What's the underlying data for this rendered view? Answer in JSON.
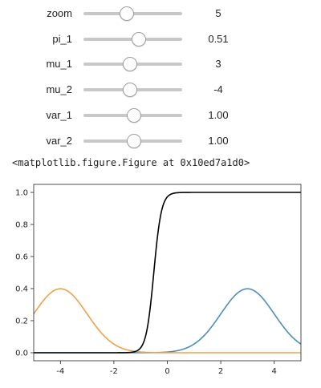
{
  "controls": [
    {
      "name": "zoom",
      "display": "5",
      "level": 0.43
    },
    {
      "name": "pi_1",
      "display": "0.51",
      "level": 0.55
    },
    {
      "name": "mu_1",
      "display": "3",
      "level": 0.46
    },
    {
      "name": "mu_2",
      "display": "-4",
      "level": 0.46
    },
    {
      "name": "var_1",
      "display": "1.00",
      "level": 0.5
    },
    {
      "name": "var_2",
      "display": "1.00",
      "level": 0.5
    }
  ],
  "output": {
    "figure_repr": "<matplotlib.figure.Figure at 0x10ed7a1d0>"
  },
  "chart_data": {
    "type": "line",
    "xlim": [
      -5,
      5
    ],
    "ylim": [
      -0.05,
      1.05
    ],
    "x_ticks": [
      -4,
      -2,
      0,
      2,
      4
    ],
    "x_tick_labels": [
      "-4",
      "-2",
      "0",
      "2",
      "4"
    ],
    "y_ticks": [
      0.0,
      0.2,
      0.4,
      0.6,
      0.8,
      1.0
    ],
    "y_tick_labels": [
      "0.0",
      "0.2",
      "0.4",
      "0.6",
      "0.8",
      "1.0"
    ],
    "grid": false,
    "series": [
      {
        "color": "#4c8fbd",
        "kind": "normal_pdf",
        "mean": 3,
        "variance": 1
      },
      {
        "color": "#f0a04b",
        "kind": "normal_pdf",
        "mean": -4,
        "variance": 1
      },
      {
        "color": "#000000",
        "kind": "posterior_component_1",
        "weight": 0.51,
        "mean_1": 3,
        "var_1": 1,
        "mean_2": -4,
        "var_2": 1
      }
    ]
  }
}
